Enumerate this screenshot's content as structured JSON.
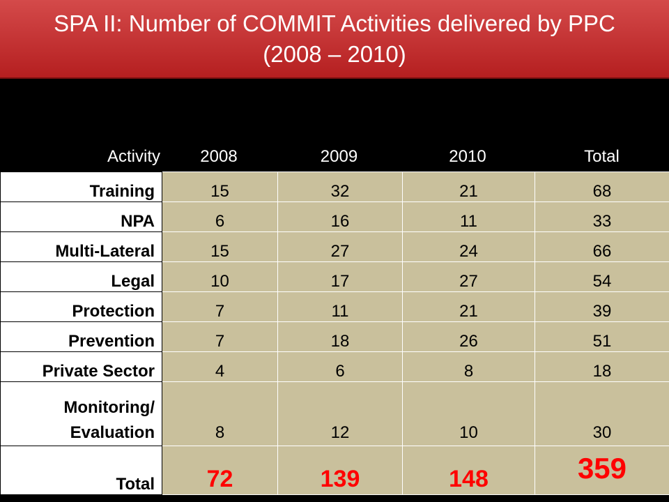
{
  "title": {
    "line1": "SPA II: Number of COMMIT Activities delivered by PPC",
    "line2": "(2008 – 2010)"
  },
  "table": {
    "headers": {
      "activity": "Activity",
      "y2008": "2008",
      "y2009": "2009",
      "y2010": "2010",
      "total": "Total"
    },
    "rows": [
      {
        "label": "Training",
        "y2008": "15",
        "y2009": "32",
        "y2010": "21",
        "total": "68"
      },
      {
        "label": "NPA",
        "y2008": "6",
        "y2009": "16",
        "y2010": "11",
        "total": "33"
      },
      {
        "label": "Multi-Lateral",
        "y2008": "15",
        "y2009": "27",
        "y2010": "24",
        "total": "66"
      },
      {
        "label": "Legal",
        "y2008": "10",
        "y2009": "17",
        "y2010": "27",
        "total": "54"
      },
      {
        "label": "Protection",
        "y2008": "7",
        "y2009": "11",
        "y2010": "21",
        "total": "39"
      },
      {
        "label": "Prevention",
        "y2008": "7",
        "y2009": "18",
        "y2010": "26",
        "total": "51"
      },
      {
        "label": "Private Sector",
        "y2008": "4",
        "y2009": "6",
        "y2010": "8",
        "total": "18"
      },
      {
        "label_line1": "Monitoring/",
        "label_line2": "Evaluation",
        "y2008": "8",
        "y2009": "12",
        "y2010": "10",
        "total": "30"
      }
    ],
    "totals": {
      "label": "Total",
      "y2008": "72",
      "y2009": "139",
      "y2010": "148",
      "total": "359"
    }
  },
  "colors": {
    "title_bar": "#c0282a",
    "cell_bg": "#c9c09c",
    "total_text": "#ff0000"
  }
}
